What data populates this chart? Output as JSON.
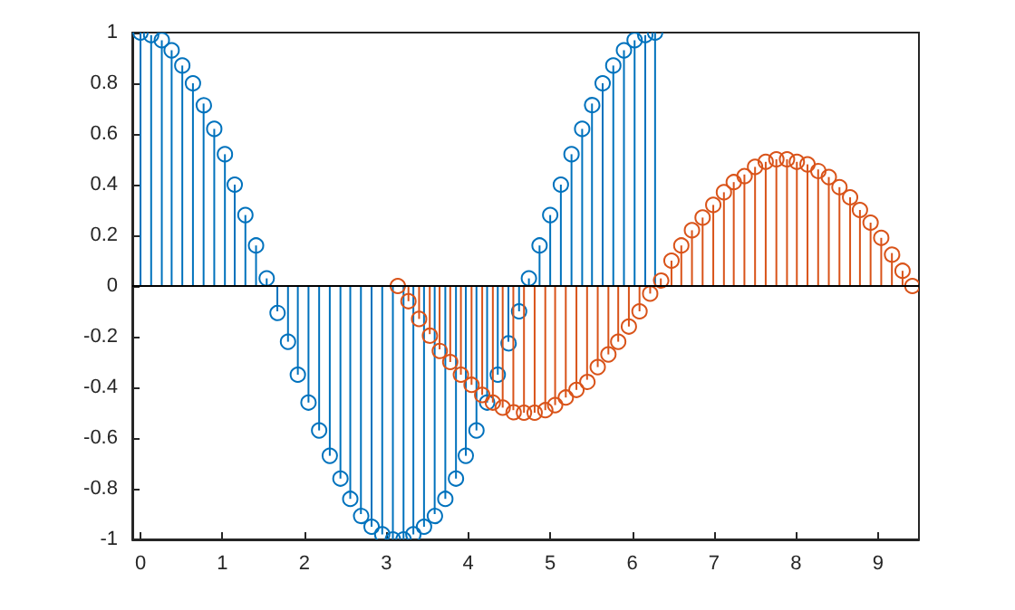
{
  "chart_data": {
    "type": "lollipop",
    "marker": "circle",
    "xlim": [
      -0.1,
      9.5
    ],
    "ylim": [
      -1,
      1
    ],
    "xticks": [
      0,
      1,
      2,
      3,
      4,
      5,
      6,
      7,
      8,
      9
    ],
    "yticks": [
      -1,
      -0.8,
      -0.6,
      -0.4,
      -0.2,
      0,
      0.2,
      0.4,
      0.6,
      0.8,
      1
    ],
    "grid": false,
    "ref_lines": [
      {
        "axis": "y",
        "value": 0,
        "color": "#000000"
      }
    ],
    "series": [
      {
        "color": "#0072bd",
        "x": [
          0,
          0.13,
          0.26,
          0.38,
          0.51,
          0.64,
          0.77,
          0.9,
          1.03,
          1.15,
          1.28,
          1.41,
          1.54,
          1.67,
          1.8,
          1.92,
          2.05,
          2.18,
          2.31,
          2.44,
          2.56,
          2.69,
          2.82,
          2.95,
          3.08,
          3.21,
          3.33,
          3.46,
          3.59,
          3.72,
          3.85,
          3.97,
          4.1,
          4.23,
          4.36,
          4.49,
          4.62,
          4.74,
          4.87,
          5,
          5.13,
          5.26,
          5.39,
          5.51,
          5.64,
          5.77,
          5.9,
          6.03,
          6.16,
          6.28
        ],
        "values": [
          1,
          0.99,
          0.97,
          0.93,
          0.87,
          0.8,
          0.72,
          0.62,
          0.52,
          0.4,
          0.28,
          0.16,
          0.03,
          -0.1,
          -0.22,
          -0.35,
          -0.46,
          -0.57,
          -0.67,
          -0.76,
          -0.84,
          -0.9,
          -0.95,
          -0.98,
          -1,
          -1,
          -0.98,
          -0.95,
          -0.9,
          -0.84,
          -0.76,
          -0.67,
          -0.57,
          -0.46,
          -0.35,
          -0.22,
          -0.1,
          0.03,
          0.16,
          0.28,
          0.4,
          0.52,
          0.62,
          0.72,
          0.8,
          0.87,
          0.93,
          0.97,
          0.99,
          1
        ]
      },
      {
        "color": "#d95319",
        "x": [
          3.14,
          3.27,
          3.4,
          3.53,
          3.65,
          3.78,
          3.91,
          4.04,
          4.17,
          4.3,
          4.42,
          4.55,
          4.68,
          4.81,
          4.94,
          5.06,
          5.19,
          5.32,
          5.45,
          5.58,
          5.71,
          5.83,
          5.96,
          6.09,
          6.22,
          6.35,
          6.48,
          6.6,
          6.73,
          6.86,
          6.99,
          7.12,
          7.24,
          7.37,
          7.5,
          7.63,
          7.76,
          7.89,
          8.01,
          8.14,
          8.27,
          8.4,
          8.53,
          8.66,
          8.78,
          8.91,
          9.04,
          9.17,
          9.3,
          9.42
        ],
        "values": [
          0,
          -0.06,
          -0.13,
          -0.19,
          -0.25,
          -0.3,
          -0.35,
          -0.39,
          -0.43,
          -0.46,
          -0.48,
          -0.49,
          -0.5,
          -0.5,
          -0.49,
          -0.47,
          -0.44,
          -0.41,
          -0.37,
          -0.32,
          -0.27,
          -0.22,
          -0.16,
          -0.1,
          -0.03,
          0.03,
          0.1,
          0.16,
          0.22,
          0.27,
          0.32,
          0.37,
          0.41,
          0.44,
          0.47,
          0.49,
          0.5,
          0.5,
          0.49,
          0.48,
          0.46,
          0.43,
          0.39,
          0.35,
          0.3,
          0.25,
          0.19,
          0.13,
          0.06,
          0
        ]
      }
    ]
  }
}
